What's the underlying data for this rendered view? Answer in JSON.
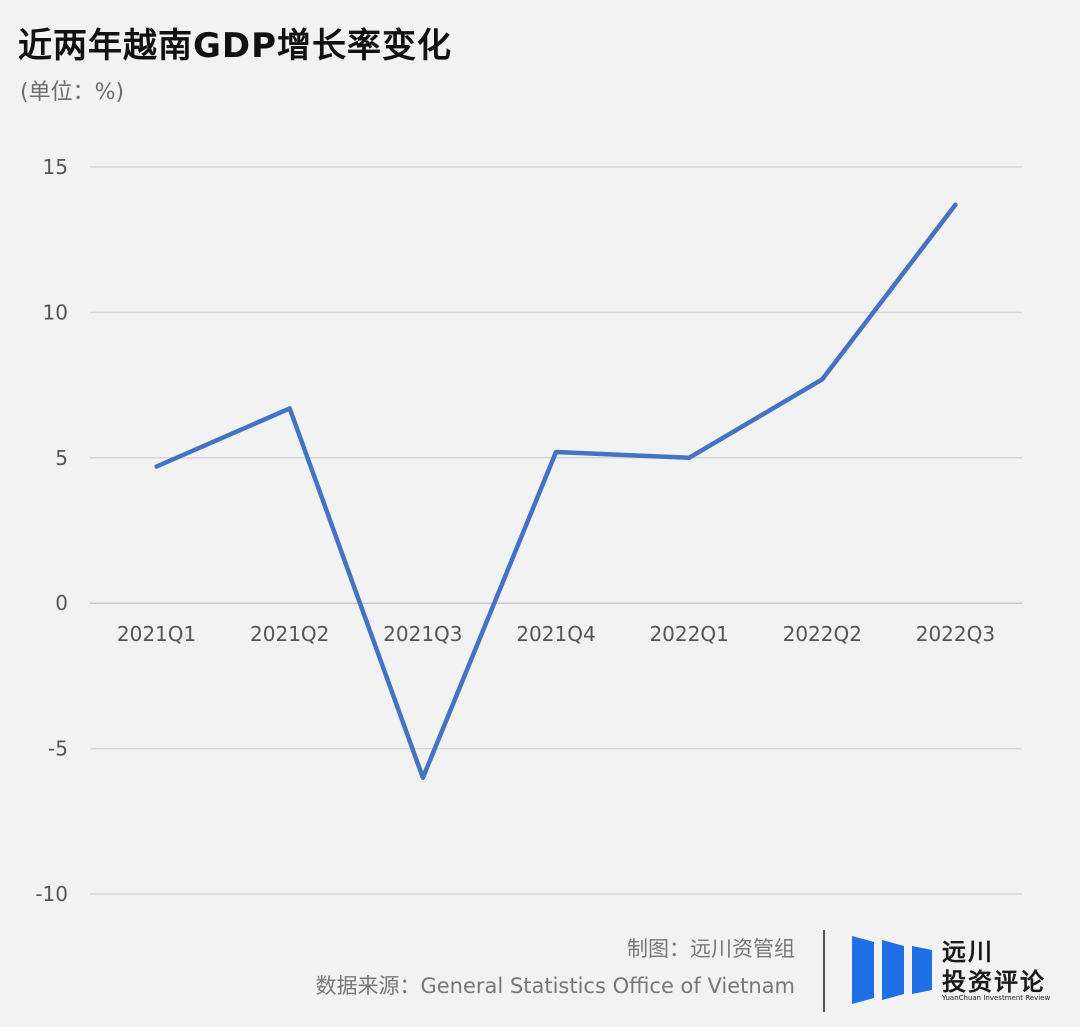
{
  "header": {
    "title": "近两年越南GDP增长率变化",
    "unit": "(单位：%)"
  },
  "chart_data": {
    "type": "line",
    "categories": [
      "2021Q1",
      "2021Q2",
      "2021Q3",
      "2021Q4",
      "2022Q1",
      "2022Q2",
      "2022Q3"
    ],
    "series": [
      {
        "values": [
          4.7,
          6.7,
          -6.0,
          5.2,
          5.0,
          7.7,
          13.7
        ]
      }
    ],
    "ylim": [
      -10,
      15
    ],
    "yticks": [
      15,
      10,
      5,
      0,
      -5,
      -10
    ],
    "grid": true,
    "line_color": "#4472c4"
  },
  "footer": {
    "credit": "制图：远川资管组",
    "source": "数据来源：General Statistics Office of Vietnam"
  },
  "logo": {
    "line1": "远川",
    "line2": "投资评论",
    "english": "YuanChuan Investment Review",
    "color": "#1f6fe5"
  }
}
